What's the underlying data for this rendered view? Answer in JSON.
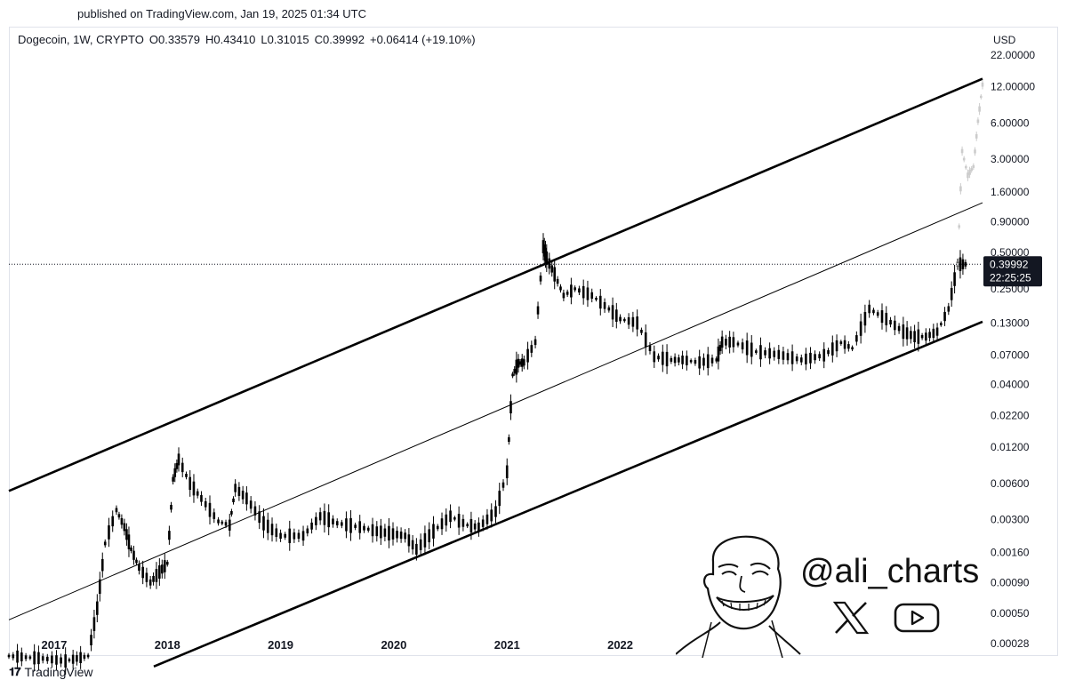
{
  "header": {
    "published": "published on TradingView.com, Jan 19, 2025 01:34 UTC"
  },
  "symbol": {
    "name": "Dogecoin, 1W, CRYPTO",
    "open": "O0.33579",
    "high": "H0.43410",
    "low": "L0.31015",
    "close": "C0.39992",
    "change": "+0.06414 (+19.10%)"
  },
  "currency": "USD",
  "last_price": {
    "price": "0.39992",
    "countdown": "22:25:25"
  },
  "footer": {
    "brand": "TradingView"
  },
  "watermark": {
    "handle": "@ali_charts",
    "icons": [
      "x-logo-icon",
      "youtube-icon",
      "meme-face-icon"
    ]
  },
  "colors": {
    "candle": "#000000",
    "projection": "#cccccc",
    "background": "#ffffff",
    "price_label": "#131722"
  },
  "chart_data": {
    "type": "line",
    "subtype": "weekly candlestick, log scale",
    "title": "Dogecoin, 1W, CRYPTO",
    "xlabel": "",
    "ylabel": "",
    "y_scale": "log",
    "x_ticks": [
      "2017",
      "2018",
      "2019",
      "2020",
      "2021",
      "2022"
    ],
    "y_ticks": [
      "22.00000",
      "12.00000",
      "6.00000",
      "3.00000",
      "1.60000",
      "0.90000",
      "0.50000",
      "0.25000",
      "0.13000",
      "0.07000",
      "0.04000",
      "0.02200",
      "0.01200",
      "0.00600",
      "0.00300",
      "0.00160",
      "0.00090",
      "0.00050",
      "0.00028"
    ],
    "ylim": [
      0.00022,
      22
    ],
    "xlim": [
      2016.6,
      2025.2
    ],
    "current_price": 0.39992,
    "series": [
      {
        "name": "",
        "x": [
          2016.6,
          2016.9,
          2017.1,
          2017.2,
          2017.3,
          2017.38,
          2017.45,
          2017.55,
          2017.62,
          2017.68,
          2017.75,
          2017.85,
          2017.93,
          2018.0,
          2018.05,
          2018.1,
          2018.2,
          2018.3,
          2018.45,
          2018.55,
          2018.6,
          2018.7,
          2018.85,
          2019.0,
          2019.2,
          2019.35,
          2019.5,
          2019.7,
          2019.85,
          2020.1,
          2020.2,
          2020.35,
          2020.5,
          2020.65,
          2020.75,
          2020.9,
          2021.0,
          2021.05,
          2021.1,
          2021.15,
          2021.25,
          2021.32,
          2021.35,
          2021.42,
          2021.5,
          2021.6,
          2021.75,
          2021.9,
          2022.0,
          2022.15,
          2022.3,
          2022.45,
          2022.55,
          2022.7,
          2022.85,
          2022.9,
          2023.0,
          2023.2,
          2023.4,
          2023.6,
          2023.8,
          2023.95,
          2024.05,
          2024.2,
          2024.35,
          2024.5,
          2024.6,
          2024.7,
          2024.8,
          2024.9,
          2024.98,
          2025.05
        ],
        "y": [
          0.00022,
          0.00021,
          0.0002,
          0.00021,
          0.00022,
          0.00055,
          0.0019,
          0.0036,
          0.0026,
          0.0017,
          0.0012,
          0.0009,
          0.0011,
          0.0013,
          0.0065,
          0.0095,
          0.006,
          0.0045,
          0.0029,
          0.0027,
          0.0055,
          0.0045,
          0.0028,
          0.0022,
          0.0022,
          0.0032,
          0.0028,
          0.0026,
          0.0024,
          0.0022,
          0.0017,
          0.0024,
          0.0032,
          0.0027,
          0.0026,
          0.0035,
          0.0075,
          0.048,
          0.06,
          0.061,
          0.09,
          0.56,
          0.45,
          0.33,
          0.22,
          0.25,
          0.22,
          0.17,
          0.14,
          0.13,
          0.068,
          0.064,
          0.064,
          0.061,
          0.064,
          0.09,
          0.09,
          0.075,
          0.071,
          0.064,
          0.07,
          0.089,
          0.08,
          0.17,
          0.14,
          0.11,
          0.1,
          0.1,
          0.11,
          0.17,
          0.4,
          0.4
        ]
      },
      {
        "name": "",
        "x": [
          2024.98,
          2025.02,
          2025.07,
          2025.12,
          2025.16,
          2025.2
        ],
        "y": [
          0.4,
          3.5,
          2.2,
          2.6,
          6.2,
          12.5
        ]
      }
    ],
    "channel_lines": [
      {
        "name": "",
        "x": [
          2016.6,
          2025.2
        ],
        "y": [
          0.0052,
          14
        ]
      },
      {
        "name": "",
        "x": [
          2016.6,
          2025.2
        ],
        "y": [
          0.00044,
          1.3
        ]
      },
      {
        "name": "",
        "x": [
          2017.88,
          2025.2
        ],
        "y": [
          0.00018,
          0.133
        ]
      }
    ]
  }
}
